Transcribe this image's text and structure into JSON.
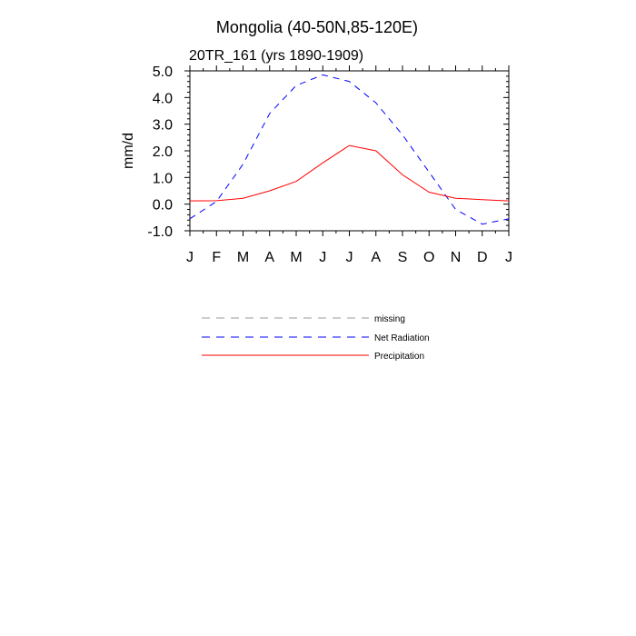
{
  "chart_data": {
    "type": "line",
    "title": "Mongolia (40-50N,85-120E)",
    "subtitle": "20TR_161 (yrs 1890-1909)",
    "xlabel": "",
    "ylabel": "mm/d",
    "categories": [
      "J",
      "F",
      "M",
      "A",
      "M",
      "J",
      "J",
      "A",
      "S",
      "O",
      "N",
      "D",
      "J"
    ],
    "ylim": [
      -1.0,
      5.0
    ],
    "yticks": [
      -1.0,
      0.0,
      1.0,
      2.0,
      3.0,
      4.0,
      5.0
    ],
    "ytick_labels": [
      "-1.0",
      "0.0",
      "1.0",
      "2.0",
      "3.0",
      "4.0",
      "5.0"
    ],
    "series": [
      {
        "name": "missing",
        "color": "#999999",
        "dash": "dashed",
        "values": [
          null,
          null,
          null,
          null,
          null,
          null,
          null,
          null,
          null,
          null,
          null,
          null,
          null
        ]
      },
      {
        "name": "Net Radiation",
        "color": "#0000ff",
        "dash": "dashed",
        "values": [
          -0.55,
          0.1,
          1.5,
          3.4,
          4.45,
          4.85,
          4.6,
          3.8,
          2.6,
          1.2,
          -0.2,
          -0.75,
          -0.55
        ]
      },
      {
        "name": "Precipitation",
        "color": "#ff0000",
        "dash": "solid",
        "values": [
          0.12,
          0.13,
          0.22,
          0.5,
          0.85,
          1.55,
          2.2,
          2.0,
          1.1,
          0.45,
          0.22,
          0.17,
          0.12
        ]
      }
    ],
    "legend": [
      "missing",
      "Net Radiation",
      "Precipitation"
    ]
  }
}
